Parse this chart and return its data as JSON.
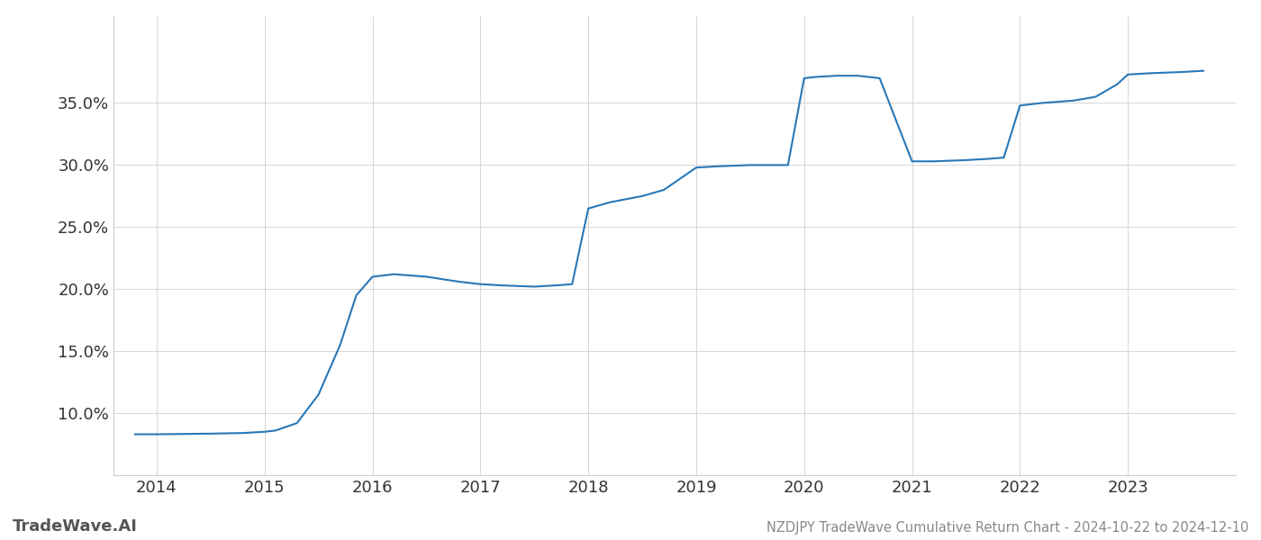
{
  "x_years": [
    2013.8,
    2014.0,
    2014.5,
    2014.8,
    2015.0,
    2015.1,
    2015.3,
    2015.5,
    2015.7,
    2015.85,
    2016.0,
    2016.2,
    2016.5,
    2016.8,
    2017.0,
    2017.2,
    2017.5,
    2017.7,
    2017.85,
    2018.0,
    2018.2,
    2018.5,
    2018.7,
    2018.9,
    2019.0,
    2019.2,
    2019.5,
    2019.7,
    2019.85,
    2020.0,
    2020.1,
    2020.3,
    2020.5,
    2020.7,
    2021.0,
    2021.2,
    2021.5,
    2021.7,
    2021.85,
    2022.0,
    2022.2,
    2022.5,
    2022.7,
    2022.9,
    2023.0,
    2023.2,
    2023.5,
    2023.7
  ],
  "y_values": [
    8.3,
    8.3,
    8.35,
    8.4,
    8.5,
    8.6,
    9.2,
    11.5,
    15.5,
    19.5,
    21.0,
    21.2,
    21.0,
    20.6,
    20.4,
    20.3,
    20.2,
    20.3,
    20.4,
    26.5,
    27.0,
    27.5,
    28.0,
    29.2,
    29.8,
    29.9,
    30.0,
    30.0,
    30.0,
    37.0,
    37.1,
    37.2,
    37.2,
    37.0,
    30.3,
    30.3,
    30.4,
    30.5,
    30.6,
    34.8,
    35.0,
    35.2,
    35.5,
    36.5,
    37.3,
    37.4,
    37.5,
    37.6
  ],
  "line_color": "#2878b8",
  "line_width": 1.5,
  "background_color": "#ffffff",
  "grid_color": "#d0d0d0",
  "title_text": "NZDJPY TradeWave Cumulative Return Chart - 2024-10-22 to 2024-12-10",
  "watermark_text": "TradeWave.AI",
  "watermark_color": "#555555",
  "title_color": "#888888",
  "tick_color": "#aaaaaa",
  "axis_color": "#333333",
  "xlim": [
    2013.6,
    2024.0
  ],
  "ylim": [
    5.0,
    42.0
  ],
  "yticks": [
    10.0,
    15.0,
    20.0,
    25.0,
    30.0,
    35.0
  ],
  "xticks": [
    2014,
    2015,
    2016,
    2017,
    2018,
    2019,
    2020,
    2021,
    2022,
    2023
  ],
  "figsize": [
    14.0,
    6.0
  ],
  "dpi": 100
}
